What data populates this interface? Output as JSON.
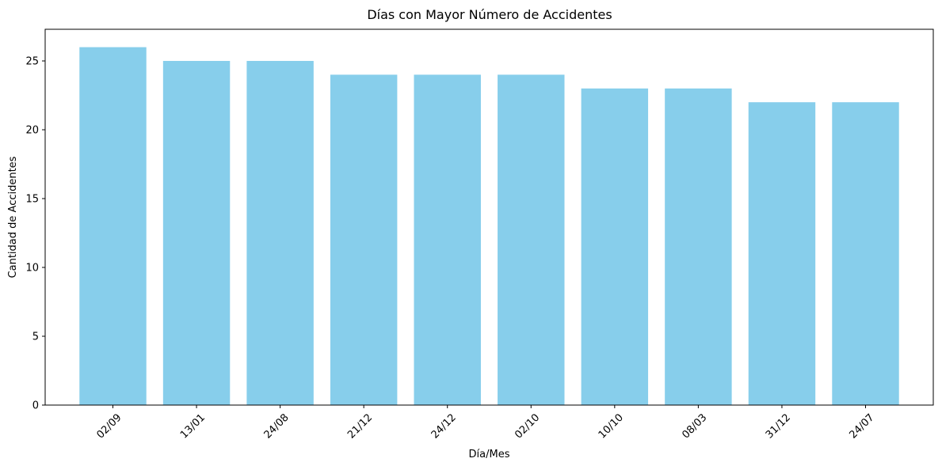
{
  "chart_data": {
    "type": "bar",
    "title": "Días con Mayor Número de Accidentes",
    "xlabel": "Día/Mes",
    "ylabel": "Cantidad de Accidentes",
    "categories": [
      "02/09",
      "13/01",
      "24/08",
      "21/12",
      "24/12",
      "02/10",
      "10/10",
      "08/03",
      "31/12",
      "24/07"
    ],
    "values": [
      26,
      25,
      25,
      24,
      24,
      24,
      23,
      23,
      22,
      22
    ],
    "ylim": [
      0,
      27.3
    ],
    "yticks": [
      0,
      5,
      10,
      15,
      20,
      25
    ],
    "x_tick_rotation": 45,
    "bar_color": "#87ceeb",
    "grid": false,
    "legend": null
  }
}
